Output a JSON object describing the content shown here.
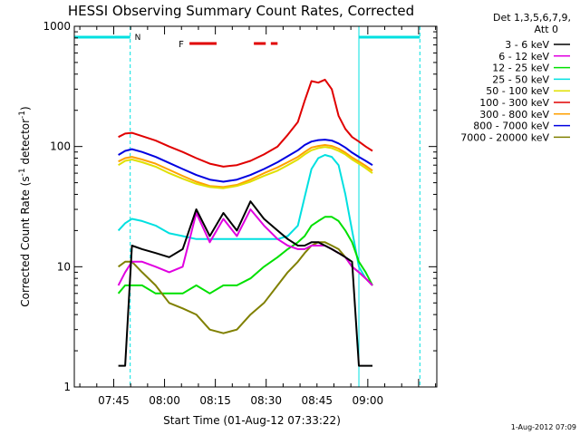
{
  "chart_data": {
    "type": "line",
    "title": "HESSI Observing Summary Count Rates, Corrected",
    "xlabel": "Start Time (01-Aug-12 07:33:22)",
    "ylabel_main": "Corrected Count Rate (s",
    "ylabel_sup1": "-1",
    "ylabel_mid": " detector",
    "ylabel_sup2": "-1",
    "ylabel_end": ")",
    "y_scale": "log",
    "ylim": [
      1,
      1000
    ],
    "xlim_minutes": [
      0,
      107
    ],
    "x_ticks": [
      "07:45",
      "08:00",
      "08:15",
      "08:30",
      "08:45",
      "09:00"
    ],
    "x_tick_minutes": [
      11.63,
      26.63,
      41.63,
      56.63,
      71.63,
      86.63
    ],
    "y_ticks": [
      "1",
      "10",
      "100",
      "1000"
    ],
    "y_tick_values": [
      1,
      10,
      100,
      1000
    ],
    "legend_header": [
      "Det 1,3,5,6,7,9,",
      "Att 0"
    ],
    "legend_position": "right",
    "timestamp": "1-Aug-2012 07:09",
    "flag_labels": {
      "night": "N",
      "flare": "F"
    },
    "night_intervals": [
      [
        0,
        16.5
      ],
      [
        84,
        102
      ]
    ],
    "flare_segments": [
      [
        34,
        42
      ],
      [
        53,
        56.5
      ],
      [
        58,
        60
      ]
    ],
    "x": [
      13,
      15,
      17,
      20,
      24,
      28,
      32,
      36,
      40,
      44,
      48,
      52,
      56,
      60,
      63,
      66,
      68,
      70,
      72,
      74,
      76,
      78,
      80,
      82,
      84,
      86,
      88
    ],
    "series": [
      {
        "name": "3 - 6 keV",
        "color": "#000000",
        "values": [
          1.5,
          1.5,
          15,
          14,
          13,
          12,
          14,
          30,
          18,
          28,
          20,
          35,
          25,
          20,
          17,
          15,
          15,
          16,
          16,
          15,
          14,
          13,
          12,
          11,
          1.5,
          1.5,
          1.5
        ]
      },
      {
        "name": "6 - 12 keV",
        "color": "#e000e0",
        "values": [
          7,
          9,
          11,
          11,
          10,
          9,
          10,
          28,
          16,
          25,
          18,
          30,
          22,
          17,
          15,
          14,
          14,
          15,
          15,
          15,
          14,
          13,
          12,
          10,
          9,
          8,
          7
        ]
      },
      {
        "name": "12 - 25 keV",
        "color": "#00e000",
        "values": [
          6,
          7,
          7,
          7,
          6,
          6,
          6,
          7,
          6,
          7,
          7,
          8,
          10,
          12,
          14,
          16,
          18,
          22,
          24,
          26,
          26,
          24,
          20,
          16,
          11,
          9,
          7
        ]
      },
      {
        "name": "25 - 50 keV",
        "color": "#00e0e0",
        "values": [
          20,
          23,
          25,
          24,
          22,
          19,
          18,
          17,
          17,
          17,
          17,
          17,
          17,
          17,
          18,
          22,
          38,
          65,
          80,
          85,
          82,
          70,
          40,
          20,
          10,
          8,
          7
        ]
      },
      {
        "name": "50 - 100 keV",
        "color": "#e0e000",
        "values": [
          70,
          76,
          78,
          74,
          68,
          60,
          54,
          49,
          46,
          45,
          47,
          51,
          57,
          63,
          70,
          78,
          86,
          93,
          97,
          99,
          97,
          92,
          86,
          78,
          72,
          66,
          60
        ]
      },
      {
        "name": "100 - 300 keV",
        "color": "#e00000",
        "values": [
          120,
          128,
          130,
          122,
          112,
          100,
          90,
          80,
          72,
          68,
          70,
          76,
          86,
          100,
          125,
          160,
          240,
          350,
          340,
          360,
          300,
          180,
          140,
          120,
          110,
          100,
          92
        ]
      },
      {
        "name": "300 - 800 keV",
        "color": "#ffa000",
        "values": [
          75,
          80,
          82,
          78,
          72,
          64,
          57,
          51,
          47,
          46,
          48,
          53,
          60,
          67,
          74,
          82,
          90,
          98,
          101,
          103,
          101,
          96,
          89,
          81,
          75,
          69,
          63
        ]
      },
      {
        "name": "800 - 7000 keV",
        "color": "#0000e0",
        "values": [
          85,
          92,
          95,
          90,
          82,
          73,
          65,
          58,
          53,
          51,
          53,
          58,
          65,
          74,
          83,
          93,
          103,
          110,
          113,
          114,
          112,
          106,
          98,
          89,
          82,
          76,
          70
        ]
      },
      {
        "name": "7000 - 20000 keV",
        "color": "#808000",
        "values": [
          10,
          11,
          11,
          9,
          7,
          5,
          4.5,
          4,
          3,
          2.8,
          3,
          4,
          5,
          7,
          9,
          11,
          13,
          15,
          16,
          16,
          15,
          14,
          12,
          10,
          9,
          8,
          7
        ]
      }
    ]
  }
}
